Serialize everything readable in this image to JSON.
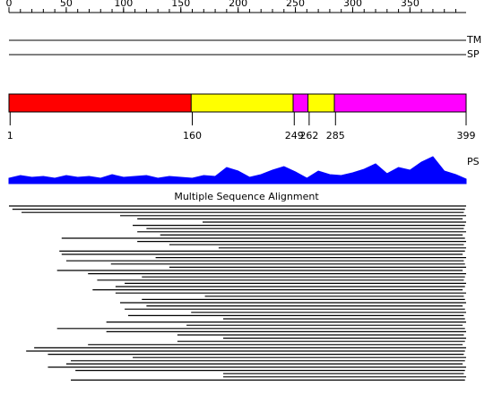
{
  "ruler": {
    "length": 399,
    "ticks": [
      0,
      50,
      100,
      150,
      200,
      250,
      300,
      350
    ],
    "minor_ticks": [
      0,
      10,
      20,
      30,
      40,
      50,
      60,
      70,
      80,
      90,
      100,
      110,
      120,
      130,
      140,
      150,
      160,
      170,
      180,
      190,
      200,
      210,
      220,
      230,
      240,
      250,
      260,
      270,
      280,
      290,
      300,
      310,
      320,
      330,
      340,
      350,
      360,
      370,
      380,
      390
    ]
  },
  "tracks": [
    {
      "label": "TM"
    },
    {
      "label": "SP"
    }
  ],
  "domains": {
    "segments": [
      {
        "start": 1,
        "end": 160,
        "color": "#ff0000"
      },
      {
        "start": 160,
        "end": 249,
        "color": "#ffff00"
      },
      {
        "start": 249,
        "end": 262,
        "color": "#ff00ff"
      },
      {
        "start": 262,
        "end": 285,
        "color": "#ffff00"
      },
      {
        "start": 285,
        "end": 399,
        "color": "#ff00ff"
      }
    ],
    "boundaries": [
      1,
      160,
      249,
      262,
      285,
      399
    ]
  },
  "profile": {
    "label": "PS",
    "color": "#0000ff",
    "x": [
      0,
      10,
      20,
      30,
      40,
      50,
      60,
      70,
      80,
      90,
      100,
      110,
      120,
      130,
      140,
      150,
      160,
      170,
      180,
      190,
      200,
      210,
      220,
      230,
      240,
      250,
      260,
      270,
      280,
      290,
      300,
      310,
      320,
      330,
      340,
      350,
      360,
      370,
      380,
      390,
      399
    ],
    "values": [
      6,
      9,
      7,
      8,
      6,
      9,
      7,
      8,
      6,
      10,
      7,
      8,
      9,
      6,
      8,
      7,
      6,
      9,
      8,
      18,
      14,
      7,
      10,
      15,
      19,
      13,
      6,
      14,
      10,
      9,
      12,
      16,
      22,
      11,
      18,
      15,
      24,
      30,
      14,
      10,
      5
    ]
  },
  "alignment": {
    "title": "Multiple Sequence Alignment",
    "rows": [
      [
        1,
        399
      ],
      [
        4,
        398
      ],
      [
        12,
        397
      ],
      [
        98,
        399
      ],
      [
        113,
        396
      ],
      [
        170,
        399
      ],
      [
        109,
        398
      ],
      [
        121,
        397
      ],
      [
        113,
        399
      ],
      [
        133,
        396
      ],
      [
        47,
        398
      ],
      [
        113,
        399
      ],
      [
        141,
        397
      ],
      [
        184,
        399
      ],
      [
        45,
        398
      ],
      [
        47,
        396
      ],
      [
        129,
        399
      ],
      [
        51,
        397
      ],
      [
        90,
        398
      ],
      [
        141,
        399
      ],
      [
        43,
        396
      ],
      [
        70,
        399
      ],
      [
        117,
        398
      ],
      [
        78,
        397
      ],
      [
        102,
        399
      ],
      [
        94,
        398
      ],
      [
        74,
        396
      ],
      [
        94,
        399
      ],
      [
        172,
        397
      ],
      [
        117,
        398
      ],
      [
        98,
        399
      ],
      [
        121,
        396
      ],
      [
        102,
        398
      ],
      [
        160,
        399
      ],
      [
        105,
        397
      ],
      [
        188,
        398
      ],
      [
        86,
        399
      ],
      [
        156,
        396
      ],
      [
        43,
        398
      ],
      [
        86,
        399
      ],
      [
        148,
        397
      ],
      [
        188,
        399
      ],
      [
        148,
        398
      ],
      [
        70,
        396
      ],
      [
        23,
        399
      ],
      [
        16,
        398
      ],
      [
        35,
        397
      ],
      [
        109,
        399
      ],
      [
        55,
        398
      ],
      [
        51,
        396
      ],
      [
        35,
        399
      ],
      [
        59,
        398
      ],
      [
        188,
        397
      ],
      [
        188,
        399
      ],
      [
        55,
        398
      ]
    ]
  }
}
